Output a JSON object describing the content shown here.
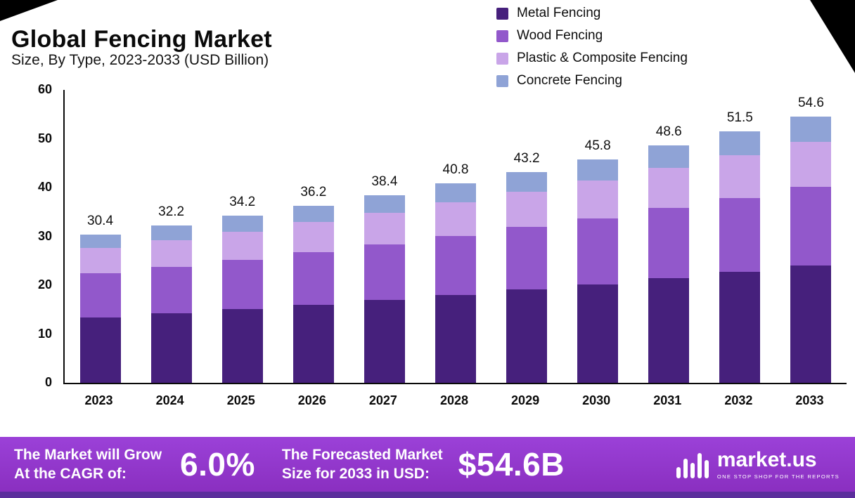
{
  "chart_data": {
    "type": "bar",
    "stacked": true,
    "title": "Global Fencing Market",
    "subtitle": "Size, By Type, 2023-2033 (USD Billion)",
    "categories": [
      "2023",
      "2024",
      "2025",
      "2026",
      "2027",
      "2028",
      "2029",
      "2030",
      "2031",
      "2032",
      "2033"
    ],
    "series": [
      {
        "name": "Metal Fencing",
        "color": "#46207c",
        "values": [
          13.4,
          14.2,
          15.1,
          16.0,
          17.0,
          18.0,
          19.1,
          20.2,
          21.5,
          22.7,
          24.1
        ]
      },
      {
        "name": "Wood Fencing",
        "color": "#9258cb",
        "values": [
          9.0,
          9.5,
          10.1,
          10.7,
          11.3,
          12.1,
          12.8,
          13.5,
          14.4,
          15.2,
          16.1
        ]
      },
      {
        "name": "Plastic & Composite Fencing",
        "color": "#c9a5e8",
        "values": [
          5.2,
          5.5,
          5.8,
          6.2,
          6.5,
          6.9,
          7.3,
          7.8,
          8.2,
          8.7,
          9.2
        ]
      },
      {
        "name": "Concrete Fencing",
        "color": "#8fa3d6",
        "values": [
          2.8,
          3.0,
          3.2,
          3.3,
          3.6,
          3.8,
          4.0,
          4.3,
          4.5,
          4.9,
          5.2
        ]
      }
    ],
    "totals": [
      30.4,
      32.2,
      34.2,
      36.2,
      38.4,
      40.8,
      43.2,
      45.8,
      48.6,
      51.5,
      54.6
    ],
    "xlabel": "",
    "ylabel": "",
    "ylim": [
      0,
      60
    ],
    "yticks": [
      0,
      10,
      20,
      30,
      40,
      50,
      60
    ],
    "grid": false,
    "legend_position": "top-right"
  },
  "banner": {
    "cagr_label": "The Market will Grow\nAt the CAGR of:",
    "cagr_value": "6.0%",
    "forecast_label": "The Forecasted Market\nSize for 2033 in USD:",
    "forecast_value": "$54.6B",
    "logo_text": "market.us",
    "logo_tagline": "One Stop Shop For The Reports",
    "logo_icon": "waveform-bars-icon"
  },
  "colors": {
    "banner_gradient_top": "#9b41d8",
    "banner_gradient_bottom": "#8a2fc0",
    "banner_strip": "#5b2d9c",
    "corner_decoration": "#000000"
  }
}
